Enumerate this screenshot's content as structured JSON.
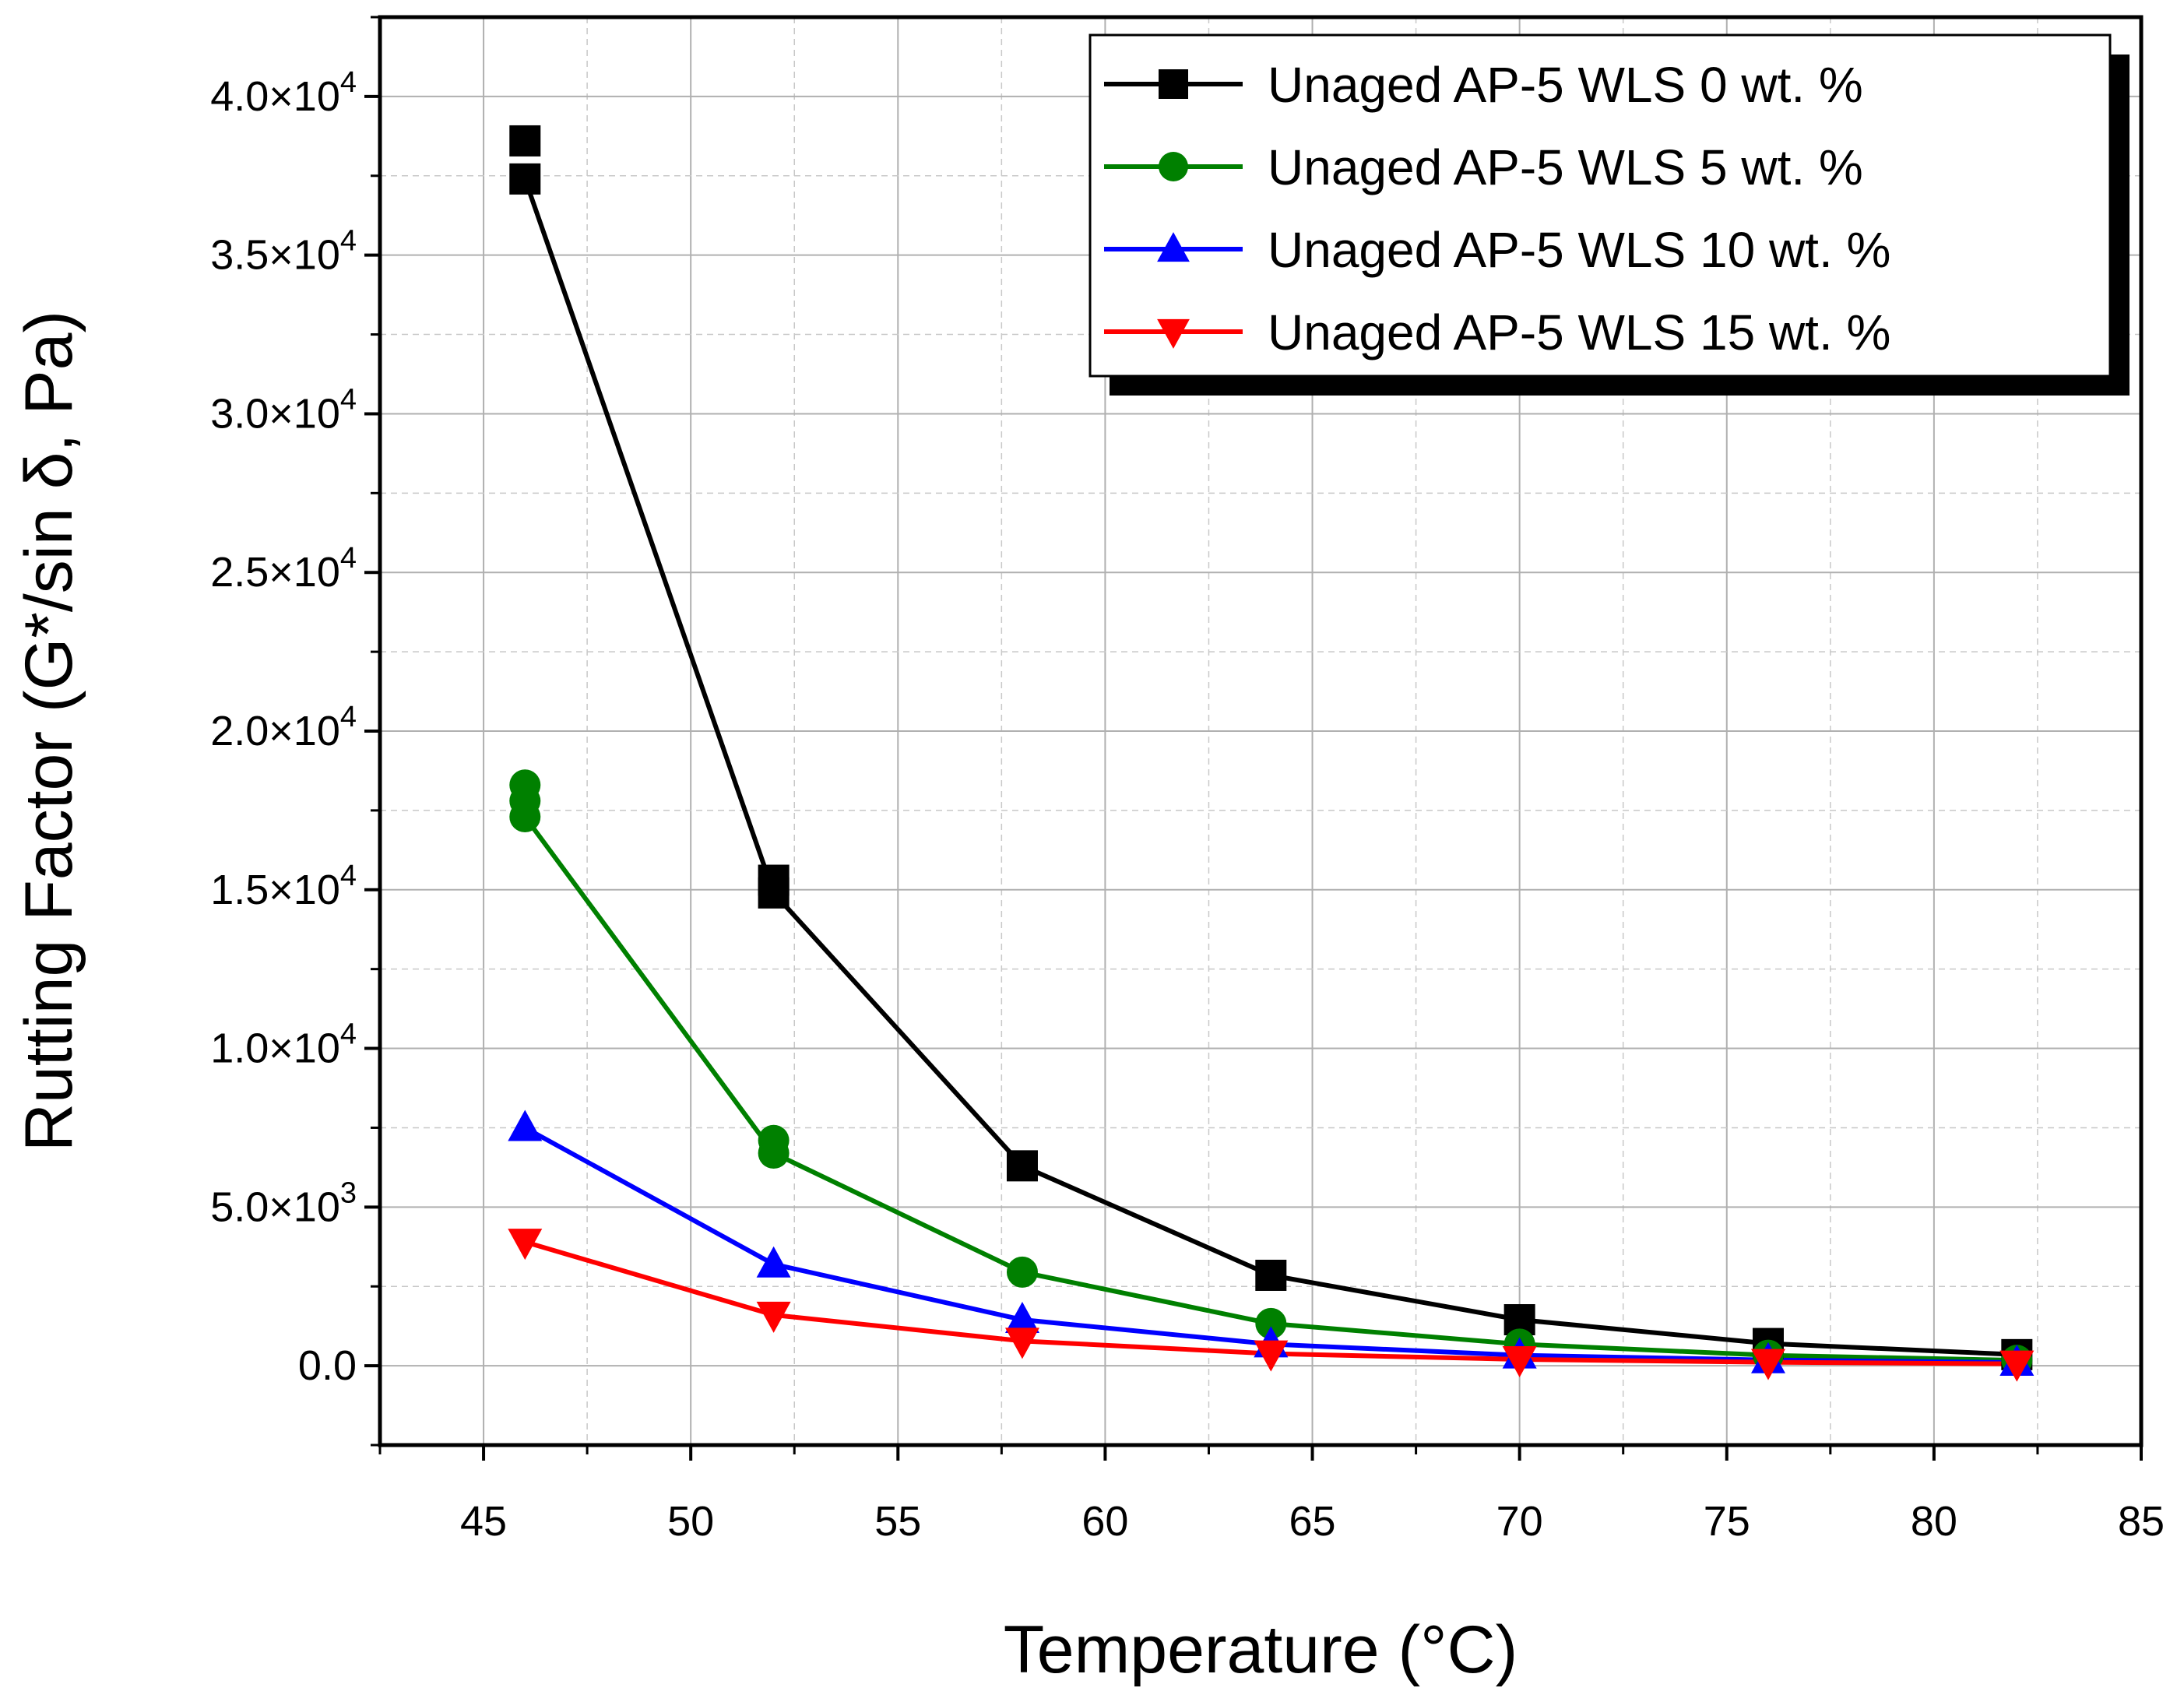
{
  "chart_data": {
    "type": "line",
    "title": "",
    "xlabel": "Temperature (°C)",
    "ylabel": "Rutting Factor (G*/sin δ, Pa)",
    "xlim": [
      42.5,
      85
    ],
    "ylim": [
      -2500,
      42500
    ],
    "x_ticks": [
      45,
      50,
      55,
      60,
      65,
      70,
      75,
      80,
      85
    ],
    "x_tick_labels": [
      "45",
      "50",
      "55",
      "60",
      "65",
      "70",
      "75",
      "80",
      "85"
    ],
    "y_ticks": [
      0,
      5000,
      10000,
      15000,
      20000,
      25000,
      30000,
      35000,
      40000
    ],
    "y_tick_labels": [
      {
        "mantissa": "0.0",
        "exp": ""
      },
      {
        "mantissa": "5.0×10",
        "exp": "3"
      },
      {
        "mantissa": "1.0×10",
        "exp": "4"
      },
      {
        "mantissa": "1.5×10",
        "exp": "4"
      },
      {
        "mantissa": "2.0×10",
        "exp": "4"
      },
      {
        "mantissa": "2.5×10",
        "exp": "4"
      },
      {
        "mantissa": "3.0×10",
        "exp": "4"
      },
      {
        "mantissa": "3.5×10",
        "exp": "4"
      },
      {
        "mantissa": "4.0×10",
        "exp": "4"
      }
    ],
    "grid": true,
    "legend_position": "top-right",
    "x": [
      46,
      52,
      58,
      64,
      70,
      76,
      82
    ],
    "series": [
      {
        "name": "Unaged AP-5 WLS 0 wt. %",
        "color": "#000000",
        "marker": "square",
        "values": [
          37400,
          14900,
          6300,
          2850,
          1450,
          700,
          350
        ],
        "replicates": [
          [
            46,
            38600
          ],
          [
            52,
            15300
          ]
        ]
      },
      {
        "name": "Unaged AP-5 WLS 5 wt. %",
        "color": "#008000",
        "marker": "circle",
        "values": [
          17300,
          6700,
          2950,
          1330,
          680,
          330,
          170
        ],
        "replicates": [
          [
            46,
            18300
          ],
          [
            46,
            17800
          ],
          [
            52,
            7100
          ]
        ]
      },
      {
        "name": "Unaged AP-5 WLS 10 wt. %",
        "color": "#0000ff",
        "marker": "triangle-up",
        "values": [
          7500,
          3200,
          1450,
          680,
          330,
          180,
          100
        ],
        "replicates": []
      },
      {
        "name": "Unaged AP-5 WLS 15 wt. %",
        "color": "#ff0000",
        "marker": "triangle-down",
        "values": [
          3900,
          1600,
          780,
          380,
          200,
          110,
          60
        ],
        "replicates": []
      }
    ]
  }
}
